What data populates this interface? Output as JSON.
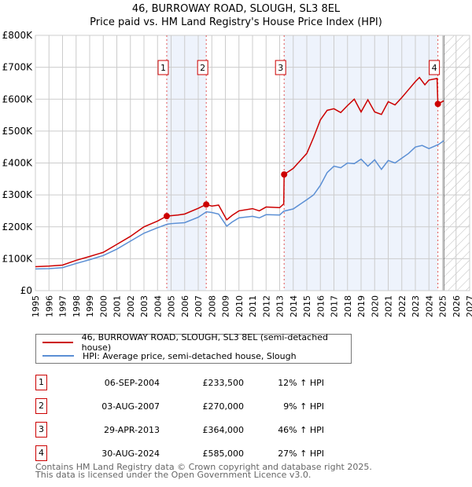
{
  "chart_data": {
    "type": "line",
    "title": "46, BURROWAY ROAD, SLOUGH, SL3 8EL",
    "subtitle": "Price paid vs. HM Land Registry's House Price Index (HPI)",
    "xlim": [
      1995,
      2027
    ],
    "ylim": [
      0,
      800000
    ],
    "x_ticks": [
      "1995",
      "1996",
      "1997",
      "1998",
      "1999",
      "2000",
      "2001",
      "2002",
      "2003",
      "2004",
      "2005",
      "2006",
      "2007",
      "2008",
      "2009",
      "2010",
      "2011",
      "2012",
      "2013",
      "2014",
      "2015",
      "2016",
      "2017",
      "2018",
      "2019",
      "2020",
      "2021",
      "2022",
      "2023",
      "2024",
      "2025",
      "2026",
      "2027"
    ],
    "y_ticks": [
      {
        "v": 0,
        "l": "£0"
      },
      {
        "v": 100000,
        "l": "£100K"
      },
      {
        "v": 200000,
        "l": "£200K"
      },
      {
        "v": 300000,
        "l": "£300K"
      },
      {
        "v": 400000,
        "l": "£400K"
      },
      {
        "v": 500000,
        "l": "£500K"
      },
      {
        "v": 600000,
        "l": "£600K"
      },
      {
        "v": 700000,
        "l": "£700K"
      },
      {
        "v": 800000,
        "l": "£800K"
      }
    ],
    "grid": true,
    "forecast_from": 2025.1,
    "series": [
      {
        "name": "46, BURROWAY ROAD, SLOUGH, SL3 8EL (semi-detached house)",
        "color": "#cc0000",
        "x": [
          1995,
          1996,
          1997,
          1998,
          1999,
          2000,
          2001,
          2002,
          2003,
          2004,
          2004.68,
          2005.5,
          2006,
          2007,
          2007.59,
          2008,
          2008.5,
          2009.1,
          2009.5,
          2010,
          2011,
          2011.5,
          2012,
          2013,
          2013.3,
          2013.33,
          2014,
          2015,
          2015.5,
          2016,
          2016.5,
          2017,
          2017.5,
          2018,
          2018.5,
          2019,
          2019.5,
          2020,
          2020.5,
          2021,
          2021.5,
          2022,
          2022.5,
          2023,
          2023.3,
          2023.7,
          2024,
          2024.6,
          2024.66,
          2025.1
        ],
        "y": [
          75000,
          77000,
          80000,
          95000,
          107000,
          120000,
          145000,
          170000,
          200000,
          218000,
          233500,
          237000,
          240000,
          258000,
          270000,
          265000,
          268000,
          222000,
          236000,
          250000,
          257000,
          250000,
          262000,
          260000,
          272000,
          364000,
          383000,
          430000,
          480000,
          535000,
          565000,
          570000,
          558000,
          580000,
          600000,
          560000,
          598000,
          560000,
          552000,
          592000,
          582000,
          605000,
          630000,
          655000,
          668000,
          645000,
          660000,
          665000,
          585000,
          595000
        ]
      },
      {
        "name": "HPI: Average price, semi-detached house, Slough",
        "color": "#5b8fd4",
        "x": [
          1995,
          1996,
          1997,
          1998,
          1999,
          2000,
          2001,
          2002,
          2003,
          2004,
          2004.7,
          2005,
          2006,
          2007,
          2007.6,
          2008,
          2008.5,
          2009.1,
          2009.5,
          2010,
          2011,
          2011.5,
          2012,
          2013,
          2013.3,
          2014,
          2015,
          2015.5,
          2016,
          2016.5,
          2017,
          2017.5,
          2018,
          2018.5,
          2019,
          2019.5,
          2020,
          2020.5,
          2021,
          2021.5,
          2022,
          2022.5,
          2023,
          2023.5,
          2024,
          2024.7,
          2025.1
        ],
        "y": [
          68000,
          69000,
          72000,
          85000,
          97000,
          110000,
          130000,
          155000,
          180000,
          197000,
          208000,
          210000,
          213000,
          230000,
          247000,
          245000,
          240000,
          202000,
          215000,
          228000,
          233000,
          228000,
          238000,
          237000,
          249000,
          256000,
          285000,
          300000,
          330000,
          370000,
          390000,
          385000,
          400000,
          398000,
          412000,
          390000,
          410000,
          380000,
          408000,
          400000,
          415000,
          430000,
          450000,
          455000,
          445000,
          458000,
          470000
        ]
      }
    ],
    "sales": [
      {
        "n": "1",
        "x": 2004.68,
        "date": "06-SEP-2004",
        "price": 233500,
        "price_label": "£233,500",
        "hpi": "12% ↑ HPI"
      },
      {
        "n": "2",
        "x": 2007.59,
        "date": "03-AUG-2007",
        "price": 270000,
        "price_label": "£270,000",
        "hpi": "9% ↑ HPI"
      },
      {
        "n": "3",
        "x": 2013.33,
        "date": "29-APR-2013",
        "price": 364000,
        "price_label": "£364,000",
        "hpi": "46% ↑ HPI"
      },
      {
        "n": "4",
        "x": 2024.66,
        "date": "30-AUG-2024",
        "price": 585000,
        "price_label": "£585,000",
        "hpi": "27% ↑ HPI"
      }
    ],
    "footer1": "Contains HM Land Registry data © Crown copyright and database right 2025.",
    "footer2": "This data is licensed under the Open Government Licence v3.0."
  }
}
